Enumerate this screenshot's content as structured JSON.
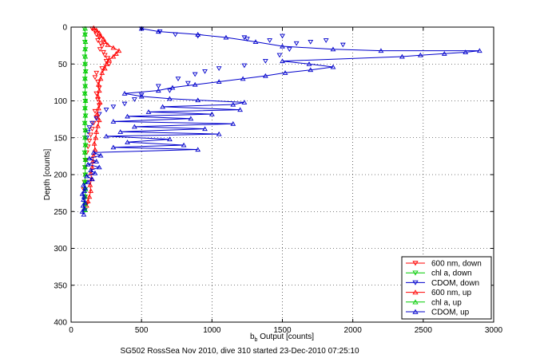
{
  "chart_data": {
    "type": "scatter",
    "title": "",
    "caption": "SG502 RossSea Nov 2010, dive 310 started 23-Dec-2010 07:25:10",
    "xlabel": {
      "main": "b",
      "sub": "b",
      "rest": " Output [counts]"
    },
    "ylabel": "Depth [counts]",
    "xlim": [
      0,
      3000
    ],
    "ylim": [
      0,
      400
    ],
    "y_reversed": true,
    "grid": true,
    "legend_position": "bottom-right",
    "xticks": [
      0,
      500,
      1000,
      1500,
      2000,
      2500,
      3000
    ],
    "yticks": [
      0,
      50,
      100,
      150,
      200,
      250,
      300,
      350,
      400
    ],
    "series": [
      {
        "name": "600 nm, down",
        "color": "#ff0000",
        "marker": "triangle-down",
        "line": false,
        "points": [
          [
            150,
            2
          ],
          [
            170,
            6
          ],
          [
            180,
            10
          ],
          [
            200,
            14
          ],
          [
            190,
            18
          ],
          [
            210,
            22
          ],
          [
            220,
            26
          ],
          [
            205,
            30
          ],
          [
            230,
            34
          ],
          [
            240,
            38
          ],
          [
            260,
            42
          ],
          [
            250,
            46
          ],
          [
            270,
            50
          ],
          [
            220,
            56
          ],
          [
            180,
            62
          ],
          [
            170,
            68
          ],
          [
            190,
            74
          ],
          [
            200,
            82
          ],
          [
            180,
            90
          ],
          [
            190,
            98
          ],
          [
            200,
            106
          ],
          [
            170,
            114
          ],
          [
            180,
            122
          ],
          [
            160,
            130
          ],
          [
            150,
            138
          ],
          [
            140,
            146
          ],
          [
            130,
            154
          ],
          [
            120,
            162
          ],
          [
            110,
            170
          ],
          [
            105,
            180
          ],
          [
            100,
            190
          ],
          [
            100,
            200
          ],
          [
            95,
            210
          ],
          [
            90,
            220
          ],
          [
            100,
            230
          ],
          [
            110,
            240
          ]
        ]
      },
      {
        "name": "chl a, down",
        "color": "#00cc00",
        "marker": "triangle-down",
        "line": false,
        "points": [
          [
            95,
            2
          ],
          [
            100,
            10
          ],
          [
            98,
            20
          ],
          [
            102,
            30
          ],
          [
            96,
            40
          ],
          [
            100,
            50
          ],
          [
            104,
            60
          ],
          [
            98,
            70
          ],
          [
            100,
            80
          ],
          [
            97,
            90
          ],
          [
            101,
            100
          ],
          [
            99,
            110
          ],
          [
            103,
            120
          ],
          [
            97,
            130
          ],
          [
            100,
            140
          ],
          [
            98,
            150
          ],
          [
            102,
            160
          ],
          [
            96,
            170
          ],
          [
            100,
            180
          ],
          [
            98,
            190
          ],
          [
            101,
            200
          ],
          [
            97,
            210
          ],
          [
            100,
            220
          ],
          [
            98,
            230
          ],
          [
            100,
            240
          ],
          [
            99,
            248
          ]
        ]
      },
      {
        "name": "CDOM, down",
        "color": "#0000cc",
        "marker": "triangle-down",
        "line": false,
        "points": [
          [
            500,
            2
          ],
          [
            630,
            6
          ],
          [
            740,
            10
          ],
          [
            900,
            12
          ],
          [
            1230,
            14
          ],
          [
            1250,
            16
          ],
          [
            1410,
            18
          ],
          [
            1500,
            12
          ],
          [
            1600,
            22
          ],
          [
            1700,
            20
          ],
          [
            1810,
            18
          ],
          [
            1930,
            24
          ],
          [
            1550,
            30
          ],
          [
            1480,
            38
          ],
          [
            1380,
            46
          ],
          [
            1230,
            52
          ],
          [
            1050,
            56
          ],
          [
            950,
            60
          ],
          [
            880,
            64
          ],
          [
            760,
            70
          ],
          [
            830,
            76
          ],
          [
            620,
            80
          ],
          [
            700,
            86
          ],
          [
            500,
            92
          ],
          [
            450,
            98
          ],
          [
            380,
            104
          ],
          [
            300,
            108
          ],
          [
            250,
            112
          ],
          [
            200,
            118
          ],
          [
            180,
            124
          ],
          [
            150,
            130
          ],
          [
            130,
            136
          ],
          [
            120,
            142
          ],
          [
            110,
            150
          ]
        ]
      },
      {
        "name": "600 nm, up",
        "color": "#ff0000",
        "marker": "triangle-up",
        "line": true,
        "points": [
          [
            110,
            242
          ],
          [
            120,
            236
          ],
          [
            130,
            230
          ],
          [
            140,
            222
          ],
          [
            135,
            214
          ],
          [
            145,
            206
          ],
          [
            140,
            198
          ],
          [
            150,
            190
          ],
          [
            155,
            182
          ],
          [
            160,
            174
          ],
          [
            170,
            166
          ],
          [
            165,
            158
          ],
          [
            175,
            150
          ],
          [
            180,
            142
          ],
          [
            190,
            134
          ],
          [
            200,
            126
          ],
          [
            185,
            118
          ],
          [
            195,
            110
          ],
          [
            205,
            102
          ],
          [
            190,
            94
          ],
          [
            200,
            86
          ],
          [
            195,
            78
          ],
          [
            210,
            70
          ],
          [
            220,
            62
          ],
          [
            240,
            56
          ],
          [
            250,
            50
          ],
          [
            270,
            44
          ],
          [
            300,
            40
          ],
          [
            320,
            36
          ],
          [
            340,
            32
          ],
          [
            300,
            28
          ],
          [
            260,
            24
          ],
          [
            240,
            20
          ],
          [
            230,
            16
          ],
          [
            210,
            12
          ],
          [
            200,
            8
          ],
          [
            180,
            4
          ],
          [
            160,
            1
          ]
        ]
      },
      {
        "name": "chl a, up",
        "color": "#00cc00",
        "marker": "triangle-up",
        "line": true,
        "points": [
          [
            100,
            248
          ],
          [
            101,
            240
          ],
          [
            99,
            230
          ],
          [
            102,
            220
          ],
          [
            98,
            210
          ],
          [
            101,
            200
          ],
          [
            99,
            190
          ],
          [
            102,
            180
          ],
          [
            98,
            170
          ],
          [
            101,
            160
          ],
          [
            99,
            150
          ],
          [
            102,
            140
          ],
          [
            98,
            130
          ],
          [
            101,
            120
          ],
          [
            99,
            110
          ],
          [
            102,
            100
          ],
          [
            98,
            90
          ],
          [
            101,
            80
          ],
          [
            99,
            70
          ],
          [
            102,
            60
          ],
          [
            98,
            50
          ],
          [
            101,
            40
          ],
          [
            99,
            30
          ],
          [
            102,
            20
          ],
          [
            98,
            10
          ],
          [
            100,
            2
          ]
        ]
      },
      {
        "name": "CDOM, up",
        "color": "#0000cc",
        "marker": "triangle-up",
        "line": true,
        "points": [
          [
            90,
            254
          ],
          [
            80,
            250
          ],
          [
            95,
            246
          ],
          [
            85,
            242
          ],
          [
            100,
            238
          ],
          [
            88,
            234
          ],
          [
            92,
            230
          ],
          [
            80,
            226
          ],
          [
            95,
            222
          ],
          [
            100,
            218
          ],
          [
            88,
            214
          ],
          [
            120,
            210
          ],
          [
            150,
            206
          ],
          [
            110,
            202
          ],
          [
            170,
            198
          ],
          [
            140,
            194
          ],
          [
            200,
            190
          ],
          [
            120,
            186
          ],
          [
            180,
            182
          ],
          [
            130,
            178
          ],
          [
            210,
            174
          ],
          [
            160,
            170
          ],
          [
            900,
            166
          ],
          [
            300,
            163
          ],
          [
            800,
            160
          ],
          [
            400,
            156
          ],
          [
            700,
            152
          ],
          [
            250,
            148
          ],
          [
            1050,
            145
          ],
          [
            350,
            142
          ],
          [
            950,
            138
          ],
          [
            450,
            135
          ],
          [
            1150,
            131
          ],
          [
            300,
            128
          ],
          [
            850,
            124
          ],
          [
            400,
            121
          ],
          [
            1000,
            118
          ],
          [
            550,
            115
          ],
          [
            1200,
            112
          ],
          [
            650,
            108
          ],
          [
            1150,
            105
          ],
          [
            1230,
            102
          ],
          [
            900,
            99
          ],
          [
            700,
            97
          ],
          [
            500,
            94
          ],
          [
            380,
            90
          ],
          [
            620,
            86
          ],
          [
            720,
            82
          ],
          [
            880,
            78
          ],
          [
            1050,
            74
          ],
          [
            1220,
            70
          ],
          [
            1380,
            66
          ],
          [
            1520,
            62
          ],
          [
            1700,
            58
          ],
          [
            1860,
            54
          ],
          [
            1690,
            50
          ],
          [
            1500,
            46
          ],
          [
            2350,
            40
          ],
          [
            2480,
            38
          ],
          [
            2650,
            36
          ],
          [
            2800,
            34
          ],
          [
            2900,
            32
          ],
          [
            2200,
            32
          ],
          [
            1860,
            30
          ],
          [
            1500,
            26
          ],
          [
            1310,
            20
          ],
          [
            1100,
            14
          ],
          [
            900,
            10
          ],
          [
            620,
            6
          ],
          [
            500,
            2
          ]
        ]
      }
    ]
  },
  "legend": {
    "items": [
      {
        "label": "600 nm, down",
        "color": "#ff0000",
        "marker": "triangle-down"
      },
      {
        "label": "chl a, down",
        "color": "#00cc00",
        "marker": "triangle-down"
      },
      {
        "label": "CDOM, down",
        "color": "#0000cc",
        "marker": "triangle-down"
      },
      {
        "label": "600 nm, up",
        "color": "#ff0000",
        "marker": "triangle-up"
      },
      {
        "label": "chl a, up",
        "color": "#00cc00",
        "marker": "triangle-up"
      },
      {
        "label": "CDOM, up",
        "color": "#0000cc",
        "marker": "triangle-up"
      }
    ]
  }
}
